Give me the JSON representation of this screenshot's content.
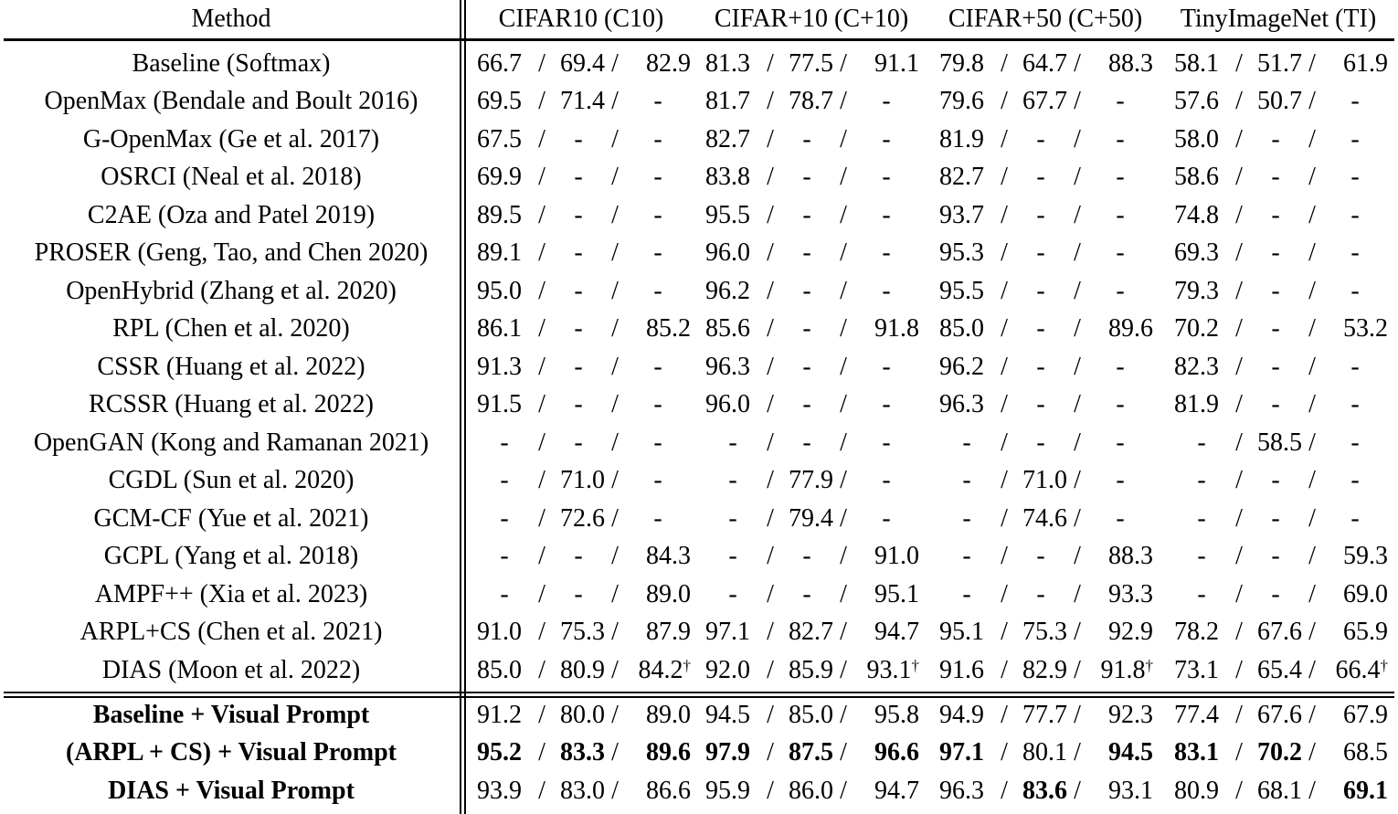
{
  "header": {
    "method": "Method",
    "datasets": [
      "CIFAR10 (C10)",
      "CIFAR+10 (C+10)",
      "CIFAR+50 (C+50)",
      "TinyImageNet (TI)"
    ]
  },
  "rows": [
    {
      "method": "Baseline (Softmax)",
      "cells": [
        [
          "66.7",
          "69.4",
          "82.9"
        ],
        [
          "81.3",
          "77.5",
          "91.1"
        ],
        [
          "79.8",
          "64.7",
          "88.3"
        ],
        [
          "58.1",
          "51.7",
          "61.9"
        ]
      ]
    },
    {
      "method": "OpenMax (Bendale and Boult 2016)",
      "cells": [
        [
          "69.5",
          "71.4",
          "-"
        ],
        [
          "81.7",
          "78.7",
          "-"
        ],
        [
          "79.6",
          "67.7",
          "-"
        ],
        [
          "57.6",
          "50.7",
          "-"
        ]
      ]
    },
    {
      "method": "G-OpenMax (Ge et al. 2017)",
      "cells": [
        [
          "67.5",
          "-",
          "-"
        ],
        [
          "82.7",
          "-",
          "-"
        ],
        [
          "81.9",
          "-",
          "-"
        ],
        [
          "58.0",
          "-",
          "-"
        ]
      ]
    },
    {
      "method": "OSRCI (Neal et al. 2018)",
      "cells": [
        [
          "69.9",
          "-",
          "-"
        ],
        [
          "83.8",
          "-",
          "-"
        ],
        [
          "82.7",
          "-",
          "-"
        ],
        [
          "58.6",
          "-",
          "-"
        ]
      ]
    },
    {
      "method": "C2AE (Oza and Patel 2019)",
      "cells": [
        [
          "89.5",
          "-",
          "-"
        ],
        [
          "95.5",
          "-",
          "-"
        ],
        [
          "93.7",
          "-",
          "-"
        ],
        [
          "74.8",
          "-",
          "-"
        ]
      ]
    },
    {
      "method": "PROSER (Geng, Tao, and Chen 2020)",
      "cells": [
        [
          "89.1",
          "-",
          "-"
        ],
        [
          "96.0",
          "-",
          "-"
        ],
        [
          "95.3",
          "-",
          "-"
        ],
        [
          "69.3",
          "-",
          "-"
        ]
      ]
    },
    {
      "method": "OpenHybrid (Zhang et al. 2020)",
      "cells": [
        [
          "95.0",
          "-",
          "-"
        ],
        [
          "96.2",
          "-",
          "-"
        ],
        [
          "95.5",
          "-",
          "-"
        ],
        [
          "79.3",
          "-",
          "-"
        ]
      ]
    },
    {
      "method": "RPL (Chen et al. 2020)",
      "cells": [
        [
          "86.1",
          "-",
          "85.2"
        ],
        [
          "85.6",
          "-",
          "91.8"
        ],
        [
          "85.0",
          "-",
          "89.6"
        ],
        [
          "70.2",
          "-",
          "53.2"
        ]
      ]
    },
    {
      "method": "CSSR (Huang et al. 2022)",
      "cells": [
        [
          "91.3",
          "-",
          "-"
        ],
        [
          "96.3",
          "-",
          "-"
        ],
        [
          "96.2",
          "-",
          "-"
        ],
        [
          "82.3",
          "-",
          "-"
        ]
      ]
    },
    {
      "method": "RCSSR (Huang et al. 2022)",
      "cells": [
        [
          "91.5",
          "-",
          "-"
        ],
        [
          "96.0",
          "-",
          "-"
        ],
        [
          "96.3",
          "-",
          "-"
        ],
        [
          "81.9",
          "-",
          "-"
        ]
      ]
    },
    {
      "method": "OpenGAN (Kong and Ramanan 2021)",
      "cells": [
        [
          "-",
          "-",
          "-"
        ],
        [
          "-",
          "-",
          "-"
        ],
        [
          "-",
          "-",
          "-"
        ],
        [
          "-",
          "58.5",
          "-"
        ]
      ]
    },
    {
      "method": "CGDL (Sun et al. 2020)",
      "cells": [
        [
          "-",
          "71.0",
          "-"
        ],
        [
          "-",
          "77.9",
          "-"
        ],
        [
          "-",
          "71.0",
          "-"
        ],
        [
          "-",
          "-",
          "-"
        ]
      ]
    },
    {
      "method": "GCM-CF (Yue et al. 2021)",
      "cells": [
        [
          "-",
          "72.6",
          "-"
        ],
        [
          "-",
          "79.4",
          "-"
        ],
        [
          "-",
          "74.6",
          "-"
        ],
        [
          "-",
          "-",
          "-"
        ]
      ]
    },
    {
      "method": "GCPL (Yang et al. 2018)",
      "cells": [
        [
          "-",
          "-",
          "84.3"
        ],
        [
          "-",
          "-",
          "91.0"
        ],
        [
          "-",
          "-",
          "88.3"
        ],
        [
          "-",
          "-",
          "59.3"
        ]
      ]
    },
    {
      "method": "AMPF++ (Xia et al. 2023)",
      "cells": [
        [
          "-",
          "-",
          "89.0"
        ],
        [
          "-",
          "-",
          "95.1"
        ],
        [
          "-",
          "-",
          "93.3"
        ],
        [
          "-",
          "-",
          "69.0"
        ]
      ]
    },
    {
      "method": "ARPL+CS (Chen et al. 2021)",
      "cells": [
        [
          "91.0",
          "75.3",
          "87.9"
        ],
        [
          "97.1",
          "82.7",
          "94.7"
        ],
        [
          "95.1",
          "75.3",
          "92.9"
        ],
        [
          "78.2",
          "67.6",
          "65.9"
        ]
      ]
    },
    {
      "method": "DIAS (Moon et al. 2022)",
      "cells": [
        [
          "85.0",
          "80.9",
          "84.2"
        ],
        [
          "92.0",
          "85.9",
          "93.1"
        ],
        [
          "91.6",
          "82.9",
          "91.8"
        ],
        [
          "73.1",
          "65.4",
          "66.4"
        ]
      ],
      "dagger": "†"
    }
  ],
  "prompt_rows": [
    {
      "method": "Baseline + Visual Prompt",
      "cells": [
        [
          "91.2",
          "80.0",
          "89.0"
        ],
        [
          "94.5",
          "85.0",
          "95.8"
        ],
        [
          "94.9",
          "77.7",
          "92.3"
        ],
        [
          "77.4",
          "67.6",
          "67.9"
        ]
      ],
      "bold": [
        [
          0,
          0,
          0
        ],
        [
          0,
          0,
          0
        ],
        [
          0,
          0,
          0
        ],
        [
          0,
          0,
          0
        ]
      ]
    },
    {
      "method": "(ARPL + CS) + Visual Prompt",
      "cells": [
        [
          "95.2",
          "83.3",
          "89.6"
        ],
        [
          "97.9",
          "87.5",
          "96.6"
        ],
        [
          "97.1",
          "80.1",
          "94.5"
        ],
        [
          "83.1",
          "70.2",
          "68.5"
        ]
      ],
      "bold": [
        [
          1,
          1,
          1
        ],
        [
          1,
          1,
          1
        ],
        [
          1,
          0,
          1
        ],
        [
          1,
          1,
          0
        ]
      ]
    },
    {
      "method": "DIAS + Visual Prompt",
      "cells": [
        [
          "93.9",
          "83.0",
          "86.6"
        ],
        [
          "95.9",
          "86.0",
          "94.7"
        ],
        [
          "96.3",
          "83.6",
          "93.1"
        ],
        [
          "80.9",
          "68.1",
          "69.1"
        ]
      ],
      "bold": [
        [
          0,
          0,
          0
        ],
        [
          0,
          0,
          0
        ],
        [
          0,
          1,
          0
        ],
        [
          0,
          0,
          1
        ]
      ]
    }
  ]
}
